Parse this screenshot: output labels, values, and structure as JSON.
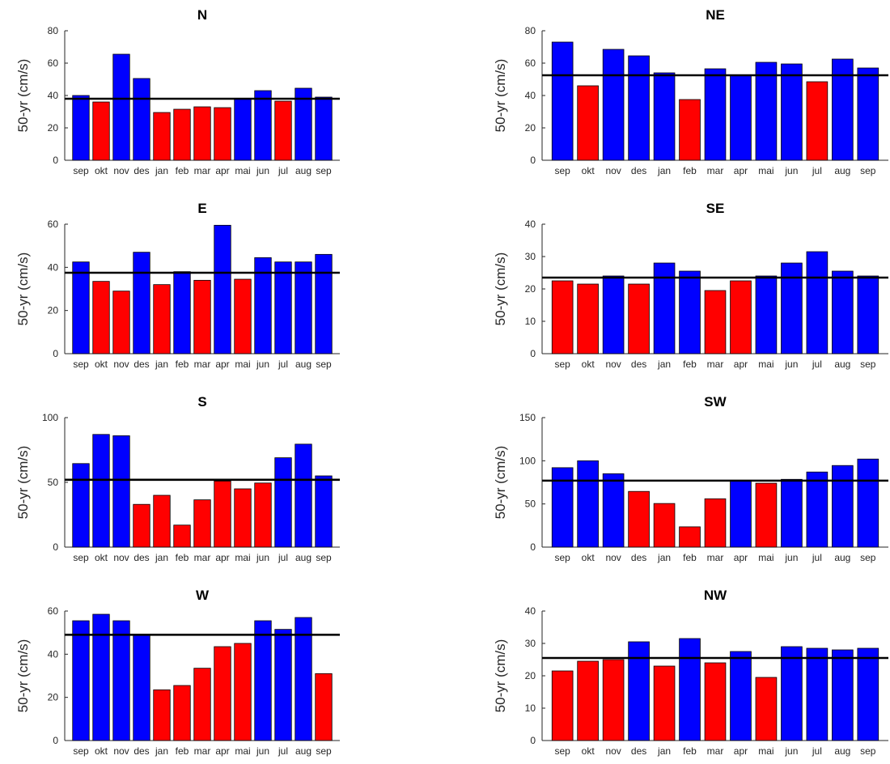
{
  "figure": {
    "background": "#ffffff"
  },
  "colors": {
    "above": "#0000ff",
    "below": "#ff0000",
    "reference_line": "#000000"
  },
  "chart_data": [
    {
      "type": "bar",
      "title": "N",
      "ylabel": "50-yr (cm/s)",
      "categories": [
        "sep",
        "okt",
        "nov",
        "des",
        "jan",
        "feb",
        "mar",
        "apr",
        "mai",
        "jun",
        "jul",
        "aug",
        "sep"
      ],
      "values": [
        40,
        36,
        65.5,
        50.5,
        29.5,
        31.5,
        33,
        32.5,
        38,
        43,
        36.5,
        44.5,
        39
      ],
      "reference_line": 38,
      "ylim": [
        0,
        80
      ],
      "yticks": [
        0,
        20,
        40,
        60,
        80
      ]
    },
    {
      "type": "bar",
      "title": "NE",
      "ylabel": "50-yr (cm/s)",
      "categories": [
        "sep",
        "okt",
        "nov",
        "des",
        "jan",
        "feb",
        "mar",
        "apr",
        "mai",
        "jun",
        "jul",
        "aug",
        "sep"
      ],
      "values": [
        73,
        46,
        68.5,
        64.5,
        54,
        37.5,
        56.5,
        52.5,
        60.5,
        59.5,
        48.5,
        62.5,
        57
      ],
      "reference_line": 52.5,
      "ylim": [
        0,
        80
      ],
      "yticks": [
        0,
        20,
        40,
        60,
        80
      ]
    },
    {
      "type": "bar",
      "title": "E",
      "ylabel": "50-yr (cm/s)",
      "categories": [
        "sep",
        "okt",
        "nov",
        "des",
        "jan",
        "feb",
        "mar",
        "apr",
        "mai",
        "jun",
        "jul",
        "aug",
        "sep"
      ],
      "values": [
        42.5,
        33.5,
        29,
        47,
        32,
        38,
        34,
        59.5,
        34.5,
        44.5,
        42.5,
        42.5,
        46
      ],
      "reference_line": 37.5,
      "ylim": [
        0,
        60
      ],
      "yticks": [
        0,
        20,
        40,
        60
      ]
    },
    {
      "type": "bar",
      "title": "SE",
      "ylabel": "50-yr (cm/s)",
      "categories": [
        "sep",
        "okt",
        "nov",
        "des",
        "jan",
        "feb",
        "mar",
        "apr",
        "mai",
        "jun",
        "jul",
        "aug",
        "sep"
      ],
      "values": [
        22.5,
        21.5,
        24,
        21.5,
        28,
        25.5,
        19.5,
        22.5,
        24,
        28,
        31.5,
        25.5,
        24
      ],
      "reference_line": 23.5,
      "ylim": [
        0,
        40
      ],
      "yticks": [
        0,
        10,
        20,
        30,
        40
      ]
    },
    {
      "type": "bar",
      "title": "S",
      "ylabel": "50-yr (cm/s)",
      "categories": [
        "sep",
        "okt",
        "nov",
        "des",
        "jan",
        "feb",
        "mar",
        "apr",
        "mai",
        "jun",
        "jul",
        "aug",
        "sep"
      ],
      "values": [
        64.5,
        87,
        86,
        33,
        40,
        17,
        36.5,
        51,
        45,
        49.5,
        69,
        79.5,
        55
      ],
      "reference_line": 52,
      "ylim": [
        0,
        100
      ],
      "yticks": [
        0,
        50,
        100
      ]
    },
    {
      "type": "bar",
      "title": "SW",
      "ylabel": "50-yr (cm/s)",
      "categories": [
        "sep",
        "okt",
        "nov",
        "des",
        "jan",
        "feb",
        "mar",
        "apr",
        "mai",
        "jun",
        "jul",
        "aug",
        "sep"
      ],
      "values": [
        92,
        100,
        85,
        64.5,
        50.5,
        23.5,
        56,
        77,
        74,
        78.5,
        87,
        94.5,
        102
      ],
      "reference_line": 77,
      "ylim": [
        0,
        150
      ],
      "yticks": [
        0,
        50,
        100,
        150
      ]
    },
    {
      "type": "bar",
      "title": "W",
      "ylabel": "50-yr (cm/s)",
      "categories": [
        "sep",
        "okt",
        "nov",
        "des",
        "jan",
        "feb",
        "mar",
        "apr",
        "mai",
        "jun",
        "jul",
        "aug",
        "sep"
      ],
      "values": [
        55.5,
        58.5,
        55.5,
        49,
        23.5,
        25.5,
        33.5,
        43.5,
        45,
        55.5,
        51.5,
        57,
        31
      ],
      "reference_line": 49,
      "ylim": [
        0,
        60
      ],
      "yticks": [
        0,
        20,
        40,
        60
      ]
    },
    {
      "type": "bar",
      "title": "NW",
      "ylabel": "50-yr (cm/s)",
      "categories": [
        "sep",
        "okt",
        "nov",
        "des",
        "jan",
        "feb",
        "mar",
        "apr",
        "mai",
        "jun",
        "jul",
        "aug",
        "sep"
      ],
      "values": [
        21.5,
        24.5,
        25,
        30.5,
        23,
        31.5,
        24,
        27.5,
        19.5,
        29,
        28.5,
        28,
        28.5
      ],
      "reference_line": 25.5,
      "ylim": [
        0,
        40
      ],
      "yticks": [
        0,
        10,
        20,
        30,
        40
      ]
    }
  ]
}
